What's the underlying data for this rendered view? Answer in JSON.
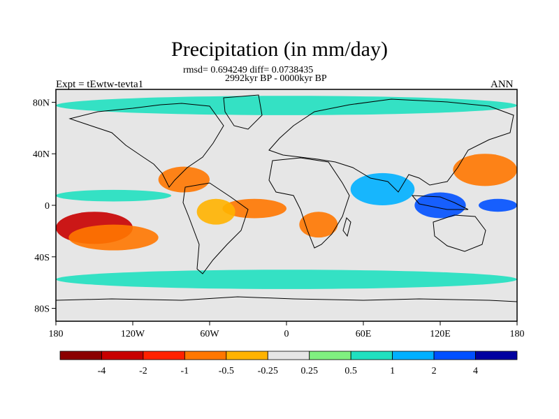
{
  "chart_data": {
    "type": "heatmap",
    "title": "Precipitation (in mm/day)",
    "subtitle_stats": "rmsd= 0.694249 diff= 0.0738435",
    "subtitle_period": "2992kyr BP - 0000kyr BP",
    "left_label": "Expt = tEwtw-tevta1",
    "right_label": "ANN",
    "x_range": [
      -180,
      180
    ],
    "y_range": [
      -90,
      90
    ],
    "x_ticks": [
      {
        "value": -180,
        "label": "180"
      },
      {
        "value": -120,
        "label": "120W"
      },
      {
        "value": -60,
        "label": "60W"
      },
      {
        "value": 0,
        "label": "0"
      },
      {
        "value": 60,
        "label": "60E"
      },
      {
        "value": 120,
        "label": "120E"
      },
      {
        "value": 180,
        "label": "180"
      }
    ],
    "y_ticks": [
      {
        "value": 80,
        "label": "80N"
      },
      {
        "value": 40,
        "label": "40N"
      },
      {
        "value": 0,
        "label": "0"
      },
      {
        "value": -40,
        "label": "40S"
      },
      {
        "value": -80,
        "label": "80S"
      }
    ],
    "colorbar": {
      "colors": [
        "#8b0000",
        "#c80000",
        "#ff2200",
        "#ff7700",
        "#ffb300",
        "#e6e6e6",
        "#80f080",
        "#20e0c0",
        "#00b0ff",
        "#0050ff",
        "#0000a0"
      ],
      "boundaries": [
        -4,
        -2,
        -1,
        -0.5,
        -0.25,
        0.25,
        0.5,
        1,
        2,
        4
      ],
      "labels": [
        "-4",
        "-2",
        "-1",
        "-0.5",
        "-0.25",
        "0.25",
        "0.5",
        "1",
        "2",
        "4"
      ]
    },
    "anomaly_regions": [
      {
        "name": "east-pacific-drying",
        "lon": [
          -180,
          -120
        ],
        "lat": [
          -30,
          -5
        ],
        "value": -4
      },
      {
        "name": "southeast-pacific-drying-band",
        "lon": [
          -170,
          -100
        ],
        "lat": [
          -35,
          -15
        ],
        "value": -1
      },
      {
        "name": "tropical-atlantic-drying",
        "lon": [
          -50,
          0
        ],
        "lat": [
          -10,
          5
        ],
        "value": -1
      },
      {
        "name": "amazon-drying",
        "lon": [
          -70,
          -40
        ],
        "lat": [
          -15,
          5
        ],
        "value": -0.5
      },
      {
        "name": "central-america-drying",
        "lon": [
          -100,
          -60
        ],
        "lat": [
          10,
          30
        ],
        "value": -1
      },
      {
        "name": "southern-africa-drying",
        "lon": [
          10,
          40
        ],
        "lat": [
          -25,
          -5
        ],
        "value": -1
      },
      {
        "name": "west-pacific-drying",
        "lon": [
          130,
          180
        ],
        "lat": [
          15,
          40
        ],
        "value": -1
      },
      {
        "name": "itcz-pacific-wetting",
        "lon": [
          -180,
          -90
        ],
        "lat": [
          3,
          12
        ],
        "value": 0.5
      },
      {
        "name": "pacific-equatorial-wetting",
        "lon": [
          150,
          180
        ],
        "lat": [
          -5,
          5
        ],
        "value": 2
      },
      {
        "name": "indian-ocean-wetting",
        "lon": [
          50,
          100
        ],
        "lat": [
          0,
          25
        ],
        "value": 1
      },
      {
        "name": "maritime-continent-wetting",
        "lon": [
          100,
          140
        ],
        "lat": [
          -10,
          10
        ],
        "value": 2
      },
      {
        "name": "arctic-wetting",
        "lon": [
          -180,
          180
        ],
        "lat": [
          70,
          85
        ],
        "value": 0.5
      },
      {
        "name": "southern-ocean-wetting",
        "lon": [
          -180,
          180
        ],
        "lat": [
          -65,
          -50
        ],
        "value": 0.5
      }
    ]
  }
}
